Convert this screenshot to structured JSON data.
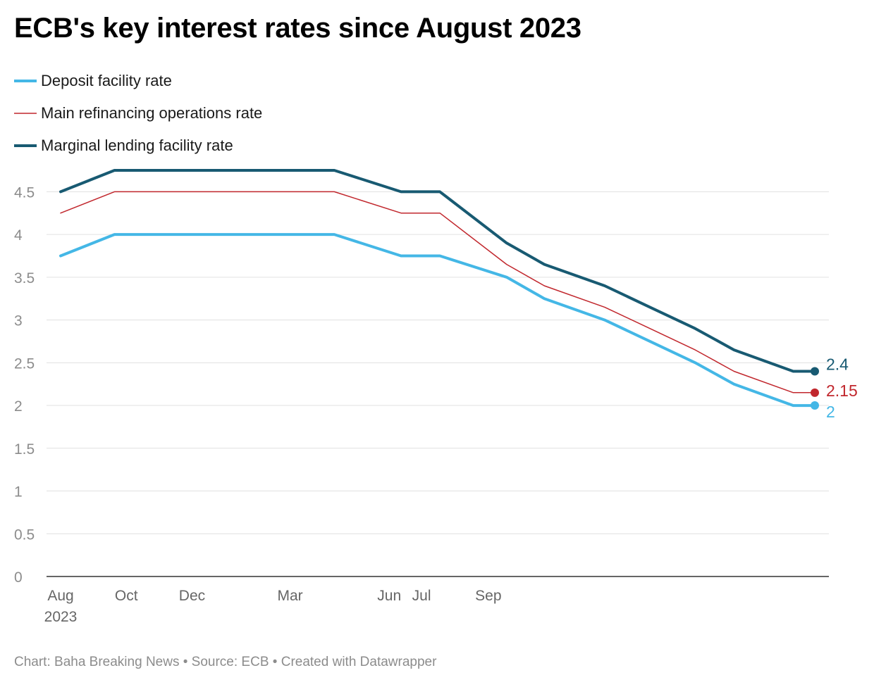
{
  "title": "ECB's key interest rates since August 2023",
  "footer": {
    "chart_credit": "Chart: Baha Breaking News",
    "source": "Source: ECB",
    "created_with": "Created with Datawrapper",
    "separator": "•"
  },
  "colors": {
    "deposit": "#44b7e6",
    "main": "#c1272d",
    "marginal": "#185a72",
    "grid": "#e0e0e0",
    "axis": "#333333",
    "tick_label": "#8c8c8c",
    "x_label": "#666666"
  },
  "chart_data": {
    "type": "line",
    "title": "ECB's key interest rates since August 2023",
    "xlabel": "",
    "ylabel": "",
    "ylim": [
      0,
      4.75
    ],
    "yticks": [
      "0",
      "0.5",
      "1",
      "1.5",
      "2",
      "2.5",
      "3",
      "3.5",
      "4",
      "4.5"
    ],
    "x": [
      "2023-08-01",
      "2023-09-20",
      "2023-10-25",
      "2023-12-14",
      "2024-01-25",
      "2024-03-07",
      "2024-04-11",
      "2024-06-12",
      "2024-07-18",
      "2024-09-18",
      "2024-10-23",
      "2024-12-18",
      "2025-01-29",
      "2025-03-12",
      "2025-04-17",
      "2025-06-11",
      "2025-07-01"
    ],
    "x_ticks": [
      {
        "date": "2023-08-01",
        "label": "Aug",
        "sublabel": "2023"
      },
      {
        "date": "2023-10-01",
        "label": "Oct",
        "sublabel": ""
      },
      {
        "date": "2023-12-01",
        "label": "Dec",
        "sublabel": ""
      },
      {
        "date": "2024-03-01",
        "label": "Mar",
        "sublabel": ""
      },
      {
        "date": "2024-06-01",
        "label": "Jun",
        "sublabel": ""
      },
      {
        "date": "2024-07-01",
        "label": "Jul",
        "sublabel": ""
      },
      {
        "date": "2024-09-01",
        "label": "Sep",
        "sublabel": ""
      }
    ],
    "series": [
      {
        "name": "Deposit facility rate",
        "key": "deposit",
        "stroke": 4,
        "end_label": "2",
        "values": [
          3.75,
          4.0,
          4.0,
          4.0,
          4.0,
          4.0,
          4.0,
          3.75,
          3.75,
          3.5,
          3.25,
          3.0,
          2.75,
          2.5,
          2.25,
          2.0,
          2.0
        ]
      },
      {
        "name": "Main refinancing operations rate",
        "key": "main",
        "stroke": 1.5,
        "end_label": "2.15",
        "values": [
          4.25,
          4.5,
          4.5,
          4.5,
          4.5,
          4.5,
          4.5,
          4.25,
          4.25,
          3.65,
          3.4,
          3.15,
          2.9,
          2.65,
          2.4,
          2.15,
          2.15
        ]
      },
      {
        "name": "Marginal lending facility rate",
        "key": "marginal",
        "stroke": 4,
        "end_label": "2.4",
        "values": [
          4.5,
          4.75,
          4.75,
          4.75,
          4.75,
          4.75,
          4.75,
          4.5,
          4.5,
          3.9,
          3.65,
          3.4,
          3.15,
          2.9,
          2.65,
          2.4,
          2.4
        ]
      }
    ],
    "legend_position": "top-left",
    "grid": true
  }
}
